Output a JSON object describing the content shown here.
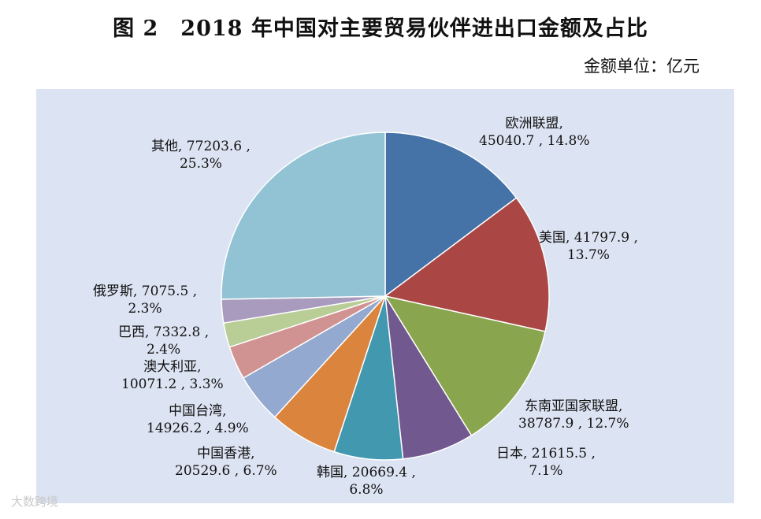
{
  "chart_data": {
    "type": "pie",
    "title": "图 2　2018 年中国对主要贸易伙伴进出口金额及占比",
    "unit_label": "金额单位：亿元",
    "slices": [
      {
        "name": "欧洲联盟",
        "value": 45040.7,
        "percent": "14.8%",
        "color": "#4572a7",
        "line1": "欧洲联盟,",
        "line2": "45040.7 , 14.8%"
      },
      {
        "name": "美国",
        "value": 41797.9,
        "percent": "13.7%",
        "color": "#aa4643",
        "line1": "美国, 41797.9 ,",
        "line2": "13.7%"
      },
      {
        "name": "东南亚国家联盟",
        "value": 38787.9,
        "percent": "12.7%",
        "color": "#89a54e",
        "line1": "东南亚国家联盟,",
        "line2": "38787.9 , 12.7%"
      },
      {
        "name": "日本",
        "value": 21615.5,
        "percent": "7.1%",
        "color": "#71588f",
        "line1": "日本, 21615.5 ,",
        "line2": "7.1%"
      },
      {
        "name": "韩国",
        "value": 20669.4,
        "percent": "6.8%",
        "color": "#4198af",
        "line1": "韩国, 20669.4 ,",
        "line2": "6.8%"
      },
      {
        "name": "中国香港",
        "value": 20529.6,
        "percent": "6.7%",
        "color": "#db843d",
        "line1": "中国香港,",
        "line2": "20529.6 , 6.7%"
      },
      {
        "name": "中国台湾",
        "value": 14926.2,
        "percent": "4.9%",
        "color": "#93a9cf",
        "line1": "中国台湾,",
        "line2": "14926.2 , 4.9%"
      },
      {
        "name": "澳大利亚",
        "value": 10071.2,
        "percent": "3.3%",
        "color": "#d19392",
        "line1": "澳大利亚,",
        "line2": "10071.2 , 3.3%"
      },
      {
        "name": "巴西",
        "value": 7332.8,
        "percent": "2.4%",
        "color": "#b9cd96",
        "line1": "巴西, 7332.8 ,",
        "line2": "2.4%"
      },
      {
        "name": "俄罗斯",
        "value": 7075.5,
        "percent": "2.3%",
        "color": "#a99bbd",
        "line1": "俄罗斯, 7075.5 ,",
        "line2": "2.3%"
      },
      {
        "name": "其他",
        "value": 77203.6,
        "percent": "25.3%",
        "color": "#92c3d5",
        "line1": "其他, 77203.6 ,",
        "line2": "25.3%"
      }
    ]
  },
  "watermark": "大数跨境"
}
